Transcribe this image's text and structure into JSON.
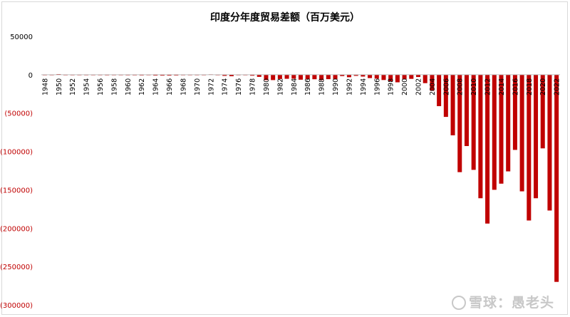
{
  "chart_data": {
    "type": "bar",
    "title": "印度分年度贸易差额（百万美元）",
    "ylim": [
      -300000,
      50000
    ],
    "y_ticks": [
      50000,
      0,
      -50000,
      -100000,
      -150000,
      -200000,
      -250000,
      -300000
    ],
    "y_tick_labels": [
      "50000",
      "0",
      "(50000)",
      "(100000)",
      "(150000)",
      "(200000)",
      "(250000)",
      "(300000)"
    ],
    "categories": [
      1948,
      1949,
      1950,
      1951,
      1952,
      1953,
      1954,
      1955,
      1956,
      1957,
      1958,
      1959,
      1960,
      1961,
      1962,
      1963,
      1964,
      1965,
      1966,
      1967,
      1968,
      1969,
      1970,
      1971,
      1972,
      1973,
      1974,
      1975,
      1976,
      1977,
      1978,
      1979,
      1980,
      1981,
      1982,
      1983,
      1984,
      1985,
      1986,
      1987,
      1988,
      1989,
      1990,
      1991,
      1992,
      1993,
      1994,
      1995,
      1996,
      1997,
      1998,
      1999,
      2000,
      2001,
      2002,
      2003,
      2004,
      2005,
      2006,
      2007,
      2008,
      2009,
      2010,
      2011,
      2012,
      2013,
      2014,
      2015,
      2016,
      2017,
      2018,
      2019,
      2020,
      2021,
      2022
    ],
    "x_tick_labels": [
      "1948",
      "1950",
      "1952",
      "1954",
      "1956",
      "1958",
      "1960",
      "1962",
      "1964",
      "1966",
      "1968",
      "1970",
      "1972",
      "1974",
      "1976",
      "1978",
      "1980",
      "1982",
      "1984",
      "1986",
      "1988",
      "1990",
      "1992",
      "1994",
      "1996",
      "1998",
      "2000",
      "2002",
      "2004",
      "2006",
      "2008",
      "2010",
      "2012",
      "2014",
      "2016",
      "2018",
      "2020",
      "2022"
    ],
    "values": [
      -400,
      -500,
      800,
      -700,
      -500,
      -400,
      -300,
      -400,
      -600,
      -800,
      -700,
      -700,
      -800,
      -800,
      -900,
      -700,
      -1100,
      -1200,
      -1200,
      -1000,
      -700,
      -300,
      -100,
      -400,
      500,
      -100,
      -1500,
      -2000,
      -300,
      -600,
      -1300,
      -2800,
      -7100,
      -7000,
      -5600,
      -5300,
      -5200,
      -6500,
      -6000,
      -5900,
      -7000,
      -5800,
      -5700,
      -1800,
      -3300,
      -1500,
      -2400,
      -4400,
      -5100,
      -6900,
      -8500,
      -9900,
      -5900,
      -5400,
      -3000,
      -11000,
      -21000,
      -41000,
      -55000,
      -79000,
      -127000,
      -93000,
      -124000,
      -161000,
      -194000,
      -150000,
      -142000,
      -126000,
      -98000,
      -152000,
      -190000,
      -161000,
      -96000,
      -177000,
      -270000
    ],
    "bar_color": "#c00000",
    "negative_label_color": "#c00000",
    "grid": false,
    "legend": "none"
  },
  "watermark": {
    "text": "雪球：愚老头"
  }
}
